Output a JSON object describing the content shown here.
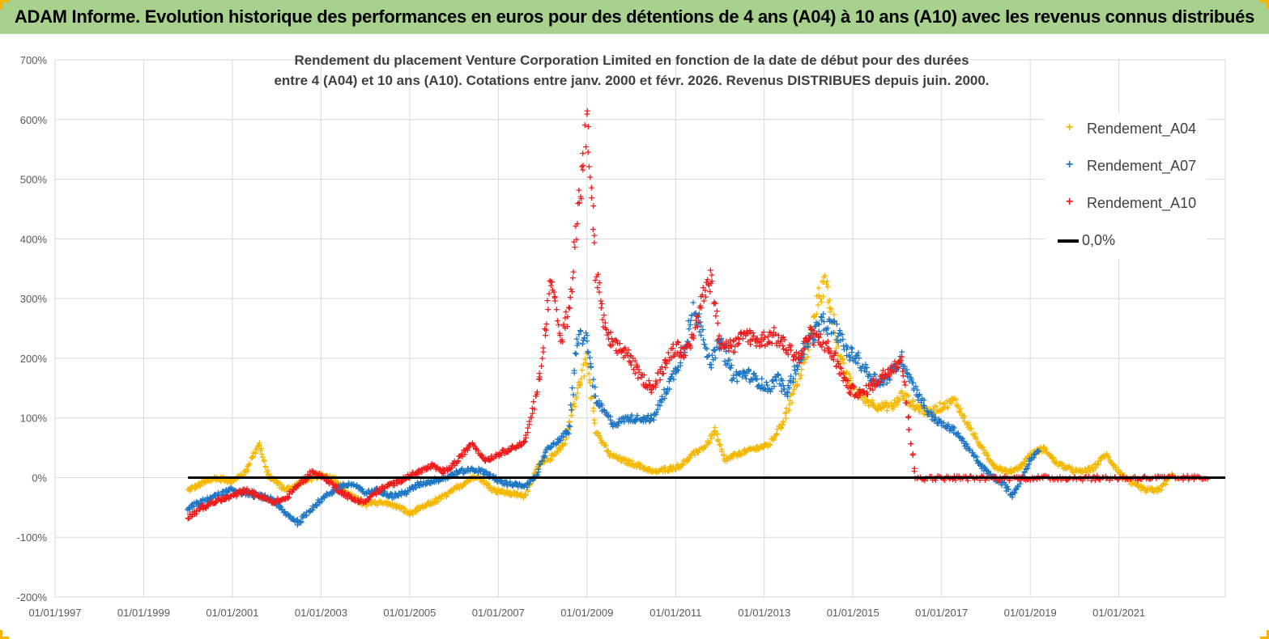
{
  "header": {
    "title": "ADAM Informe. Evolution historique des performances en euros pour des détentions de 4 ans (A04) à 10 ans (A10) avec les revenus connus distribués"
  },
  "chart_data": {
    "type": "scatter",
    "title_line1": "Rendement du placement Venture Corporation Limited en fonction de la date de début pour des durées",
    "title_line2": "entre 4 (A04) et 10 ans (A10).  Cotations entre janv. 2000 et févr. 2026. Revenus DISTRIBUES depuis juin. 2000.",
    "y_ticks": [
      "700%",
      "600%",
      "500%",
      "400%",
      "300%",
      "200%",
      "100%",
      "0%",
      "-100%",
      "-200%"
    ],
    "ylim": [
      -200,
      700
    ],
    "x_ticks": [
      "01/01/1997",
      "01/01/1999",
      "01/01/2001",
      "01/01/2003",
      "01/01/2005",
      "01/01/2007",
      "01/01/2009",
      "01/01/2011",
      "01/01/2013",
      "01/01/2015",
      "01/01/2017",
      "01/01/2019",
      "01/01/2021"
    ],
    "xlim": [
      1997.0,
      2023.4
    ],
    "legend": [
      {
        "name": "Rendement_A04",
        "color": "#f5b800",
        "marker": "+"
      },
      {
        "name": "Rendement_A07",
        "color": "#1f77c4",
        "marker": "+"
      },
      {
        "name": "Rendement_A10",
        "color": "#ee1c1c",
        "marker": "+"
      },
      {
        "name": "0,0%",
        "color": "#000000",
        "marker": "line"
      }
    ],
    "series": [
      {
        "name": "Rendement_A04",
        "color": "#f5b800",
        "x": [
          2000.0,
          2000.3,
          2000.6,
          2001.0,
          2001.3,
          2001.6,
          2001.8,
          2002.2,
          2002.6,
          2003.0,
          2003.3,
          2003.6,
          2004.0,
          2004.4,
          2004.8,
          2005.0,
          2005.4,
          2005.8,
          2006.2,
          2006.5,
          2006.9,
          2007.2,
          2007.6,
          2007.9,
          2008.2,
          2008.5,
          2008.8,
          2009.0,
          2009.2,
          2009.5,
          2009.8,
          2010.2,
          2010.5,
          2010.8,
          2011.1,
          2011.4,
          2011.7,
          2011.9,
          2012.1,
          2012.4,
          2012.8,
          2013.1,
          2013.4,
          2013.7,
          2014.0,
          2014.2,
          2014.4,
          2014.7,
          2015.0,
          2015.3,
          2015.6,
          2015.9,
          2016.1,
          2016.4,
          2016.7,
          2017.0,
          2017.3,
          2017.6,
          2017.9,
          2018.2,
          2018.5,
          2018.8,
          2019.0,
          2019.3,
          2019.6,
          2019.9,
          2020.1,
          2020.4,
          2020.7,
          2021.0,
          2021.3,
          2021.6,
          2021.9,
          2022.2
        ],
        "values": [
          -20,
          -10,
          0,
          -5,
          10,
          60,
          5,
          -20,
          -5,
          5,
          0,
          -25,
          -45,
          -40,
          -50,
          -60,
          -45,
          -30,
          -10,
          5,
          -20,
          -25,
          -30,
          20,
          35,
          60,
          150,
          200,
          80,
          40,
          30,
          20,
          10,
          15,
          20,
          40,
          55,
          80,
          30,
          40,
          50,
          55,
          90,
          150,
          220,
          300,
          330,
          200,
          150,
          130,
          120,
          120,
          140,
          120,
          110,
          120,
          130,
          90,
          50,
          20,
          10,
          20,
          40,
          50,
          25,
          15,
          10,
          15,
          40,
          10,
          -10,
          -20,
          -20,
          5
        ]
      },
      {
        "name": "Rendement_A07",
        "color": "#1f77c4",
        "x": [
          2000.0,
          2000.3,
          2000.6,
          2001.0,
          2001.3,
          2001.6,
          2001.9,
          2002.2,
          2002.5,
          2002.8,
          2003.1,
          2003.4,
          2003.7,
          2004.0,
          2004.3,
          2004.6,
          2004.9,
          2005.2,
          2005.5,
          2005.8,
          2006.1,
          2006.4,
          2006.7,
          2007.0,
          2007.3,
          2007.6,
          2007.9,
          2008.1,
          2008.3,
          2008.6,
          2008.8,
          2009.0,
          2009.2,
          2009.4,
          2009.6,
          2009.9,
          2010.2,
          2010.5,
          2010.8,
          2011.0,
          2011.2,
          2011.4,
          2011.6,
          2011.8,
          2012.0,
          2012.3,
          2012.6,
          2012.9,
          2013.1,
          2013.3,
          2013.5,
          2013.8,
          2014.0,
          2014.3,
          2014.6,
          2014.9,
          2015.1,
          2015.4,
          2015.7,
          2015.9,
          2016.1,
          2016.4,
          2016.7,
          2017.0,
          2017.3,
          2017.6,
          2017.9,
          2018.1,
          2018.4,
          2018.6,
          2018.8,
          2019.0,
          2019.2
        ],
        "values": [
          -50,
          -40,
          -30,
          -20,
          -25,
          -30,
          -35,
          -60,
          -75,
          -50,
          -30,
          -15,
          -10,
          -25,
          -20,
          -30,
          -25,
          -10,
          -5,
          0,
          10,
          15,
          10,
          -5,
          -10,
          -15,
          10,
          50,
          60,
          80,
          240,
          230,
          130,
          110,
          90,
          100,
          100,
          100,
          150,
          180,
          220,
          280,
          250,
          190,
          230,
          170,
          175,
          160,
          150,
          170,
          140,
          200,
          230,
          260,
          250,
          210,
          200,
          170,
          160,
          180,
          200,
          150,
          110,
          90,
          80,
          50,
          20,
          5,
          -10,
          -30,
          0,
          30,
          50
        ]
      },
      {
        "name": "Rendement_A10",
        "color": "#ee1c1c",
        "x": [
          2000.0,
          2000.3,
          2000.6,
          2001.0,
          2001.3,
          2001.6,
          2001.9,
          2002.2,
          2002.5,
          2002.8,
          2003.1,
          2003.4,
          2003.7,
          2004.0,
          2004.3,
          2004.6,
          2004.9,
          2005.2,
          2005.5,
          2005.8,
          2006.1,
          2006.4,
          2006.7,
          2007.0,
          2007.3,
          2007.6,
          2007.8,
          2008.0,
          2008.2,
          2008.4,
          2008.6,
          2008.8,
          2009.0,
          2009.2,
          2009.4,
          2009.6,
          2009.9,
          2010.2,
          2010.5,
          2010.8,
          2011.0,
          2011.3,
          2011.6,
          2011.8,
          2012.0,
          2012.3,
          2012.6,
          2012.9,
          2013.2,
          2013.5,
          2013.8,
          2014.0,
          2014.3,
          2014.6,
          2014.9,
          2015.2,
          2015.5,
          2015.8,
          2016.1,
          2016.4,
          2017.0,
          2018.0,
          2019.0,
          2020.0,
          2021.0,
          2022.0,
          2023.0
        ],
        "values": [
          -65,
          -50,
          -40,
          -30,
          -20,
          -30,
          -40,
          -35,
          -10,
          10,
          0,
          -20,
          -35,
          -40,
          -20,
          -10,
          0,
          10,
          20,
          10,
          30,
          60,
          30,
          40,
          50,
          60,
          120,
          200,
          350,
          230,
          280,
          450,
          600,
          350,
          250,
          220,
          210,
          170,
          150,
          200,
          220,
          210,
          300,
          340,
          230,
          220,
          240,
          230,
          240,
          220,
          200,
          240,
          230,
          200,
          150,
          140,
          160,
          180,
          200,
          0,
          0,
          0,
          0,
          0,
          0,
          0,
          0
        ]
      }
    ],
    "zero_line": {
      "from": 2000.0,
      "to": 2023.4,
      "value": 0
    }
  }
}
